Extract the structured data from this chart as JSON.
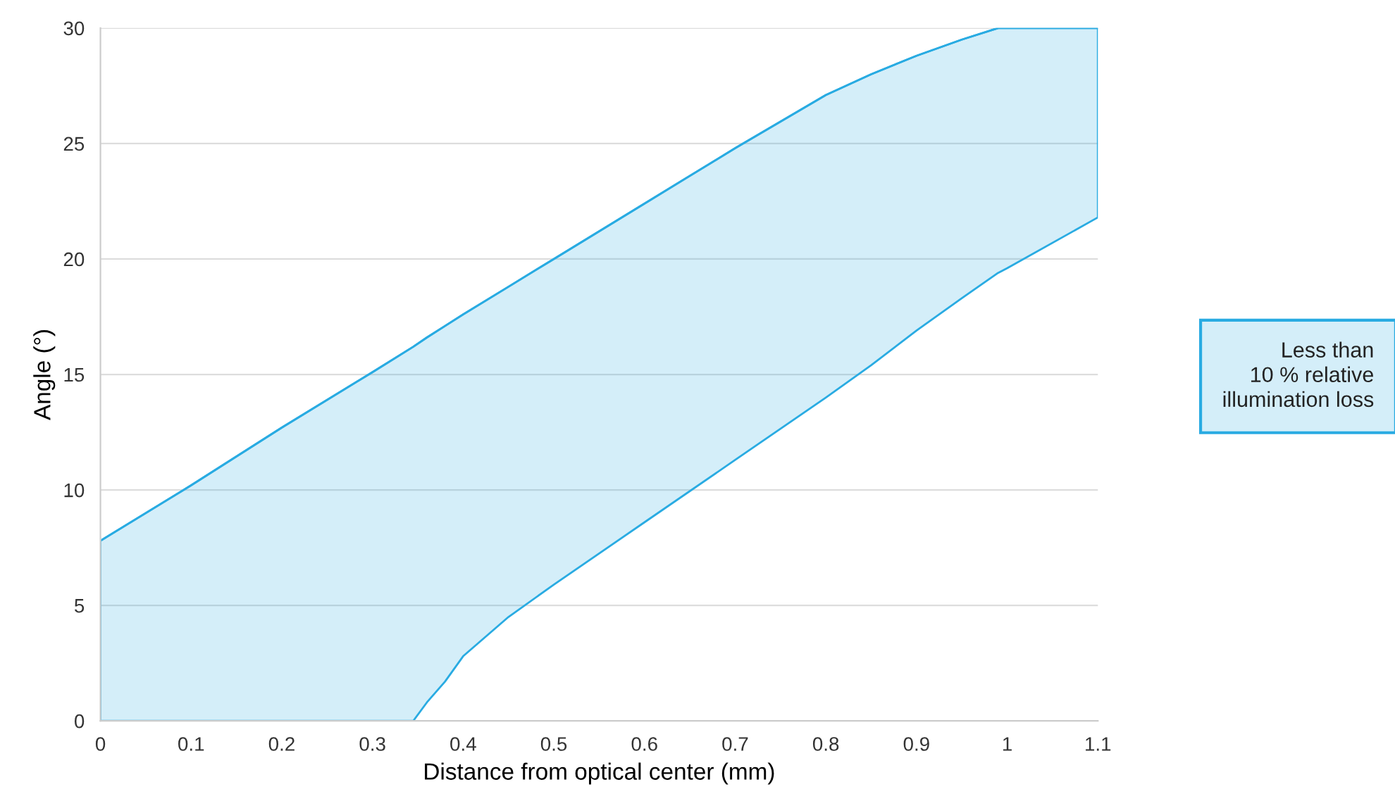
{
  "chart_data": {
    "type": "line",
    "xlabel": "Distance from optical center (mm)",
    "ylabel": "Angle (°)",
    "x": [
      0,
      0.1,
      0.2,
      0.3,
      0.345,
      0.36,
      0.38,
      0.4,
      0.45,
      0.5,
      0.6,
      0.7,
      0.8,
      0.85,
      0.9,
      0.95,
      0.99,
      1.0,
      1.1
    ],
    "series": [
      {
        "name": "Less than\n10 % relative\nillumination loss",
        "color": "#29abe2",
        "values": [
          7.8,
          10.2,
          12.7,
          15.1,
          16.2,
          16.6,
          17.1,
          17.6,
          18.8,
          20.0,
          22.4,
          24.8,
          27.1,
          28.0,
          28.8,
          29.5,
          30,
          30,
          30
        ],
        "lower": [
          0,
          0,
          0,
          0,
          0,
          0.8,
          1.7,
          2.8,
          4.5,
          5.9,
          8.6,
          11.3,
          14.0,
          15.4,
          16.9,
          18.3,
          19.4,
          19.6,
          21.8
        ],
        "upper": [
          7.8,
          10.2,
          12.7,
          15.1,
          16.2,
          16.6,
          17.1,
          17.6,
          18.8,
          20.0,
          22.4,
          24.8,
          27.1,
          28.0,
          28.8,
          29.5,
          30,
          30,
          30
        ]
      }
    ],
    "xlim": [
      0,
      1.1
    ],
    "xticks": [
      0,
      0.1,
      0.2,
      0.3,
      0.4,
      0.5,
      0.6,
      0.7,
      0.8,
      0.9,
      1,
      1.1
    ],
    "ylim": [
      0,
      30
    ],
    "yticks": [
      0,
      5,
      10,
      15,
      20,
      25,
      30
    ],
    "grid": "y",
    "legend": "right"
  }
}
